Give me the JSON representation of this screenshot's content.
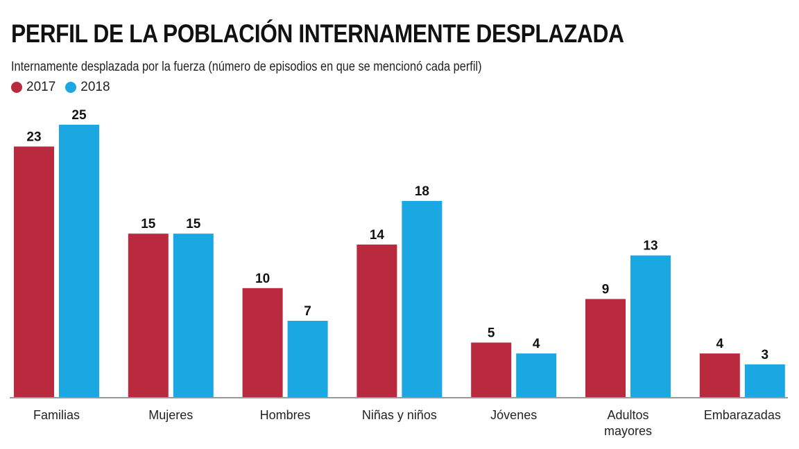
{
  "chart_data": {
    "type": "bar",
    "title": "PERFIL DE LA POBLACIÓN INTERNAMENTE DESPLAZADA",
    "subtitle": "Internamente desplazada por la fuerza (número de episodios en que se mencionó cada perfil)",
    "categories": [
      [
        "Familias"
      ],
      [
        "Mujeres"
      ],
      [
        "Hombres"
      ],
      [
        "Niñas y niños"
      ],
      [
        "Jóvenes"
      ],
      [
        "Adultos",
        "mayores"
      ],
      [
        "Embarazadas"
      ]
    ],
    "series": [
      {
        "name": "2017",
        "color": "#b92a3e",
        "values": [
          23,
          15,
          10,
          14,
          5,
          9,
          4
        ]
      },
      {
        "name": "2018",
        "color": "#1ba7e1",
        "values": [
          25,
          15,
          7,
          18,
          4,
          13,
          3
        ]
      }
    ],
    "ylim": [
      0,
      25
    ],
    "grid": false,
    "legend": "top-left",
    "data_labels": true
  }
}
